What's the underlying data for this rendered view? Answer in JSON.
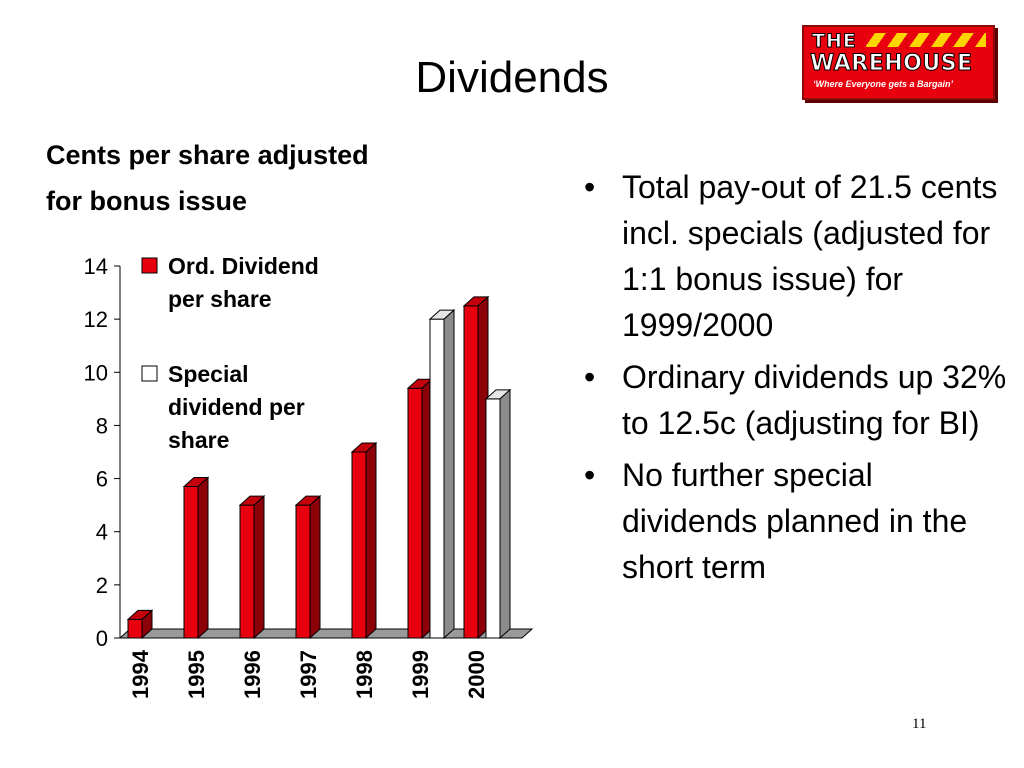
{
  "slide": {
    "title": "Dividends",
    "subtitle_lines": [
      "Cents per share adjusted",
      "for bonus issue"
    ],
    "page_number": "11"
  },
  "logo": {
    "line1": "THE",
    "line2": "WAREHOUSE",
    "tagline": "‘Where Everyone gets a Bargain’",
    "color": "#e8000f",
    "accent": "#ffd500"
  },
  "bullets": [
    "Total pay-out of 21.5 cents incl. specials (adjusted for 1:1 bonus issue) for 1999/2000",
    "Ordinary dividends up 32% to 12.5c (adjusting for BI)",
    "No further special dividends planned in the short term"
  ],
  "chart_data": {
    "type": "bar",
    "categories": [
      "1994",
      "1995",
      "1996",
      "1997",
      "1998",
      "1999",
      "2000"
    ],
    "series": [
      {
        "name": "Ord. Dividend per share",
        "legend_lines": [
          "Ord. Dividend",
          "per share"
        ],
        "color": "#e8000f",
        "values": [
          0.7,
          5.7,
          5.0,
          5.0,
          7.0,
          9.4,
          12.5
        ]
      },
      {
        "name": "Special dividend per share",
        "legend_lines": [
          "Special",
          "dividend per",
          "share"
        ],
        "color": "#ffffff",
        "values": [
          0,
          0,
          0,
          0,
          0,
          12.0,
          9.0
        ]
      }
    ],
    "ylim": [
      0,
      14
    ],
    "yticks": [
      0,
      2,
      4,
      6,
      8,
      10,
      12,
      14
    ],
    "legend": "top-left",
    "three_d": true,
    "grid": false
  }
}
